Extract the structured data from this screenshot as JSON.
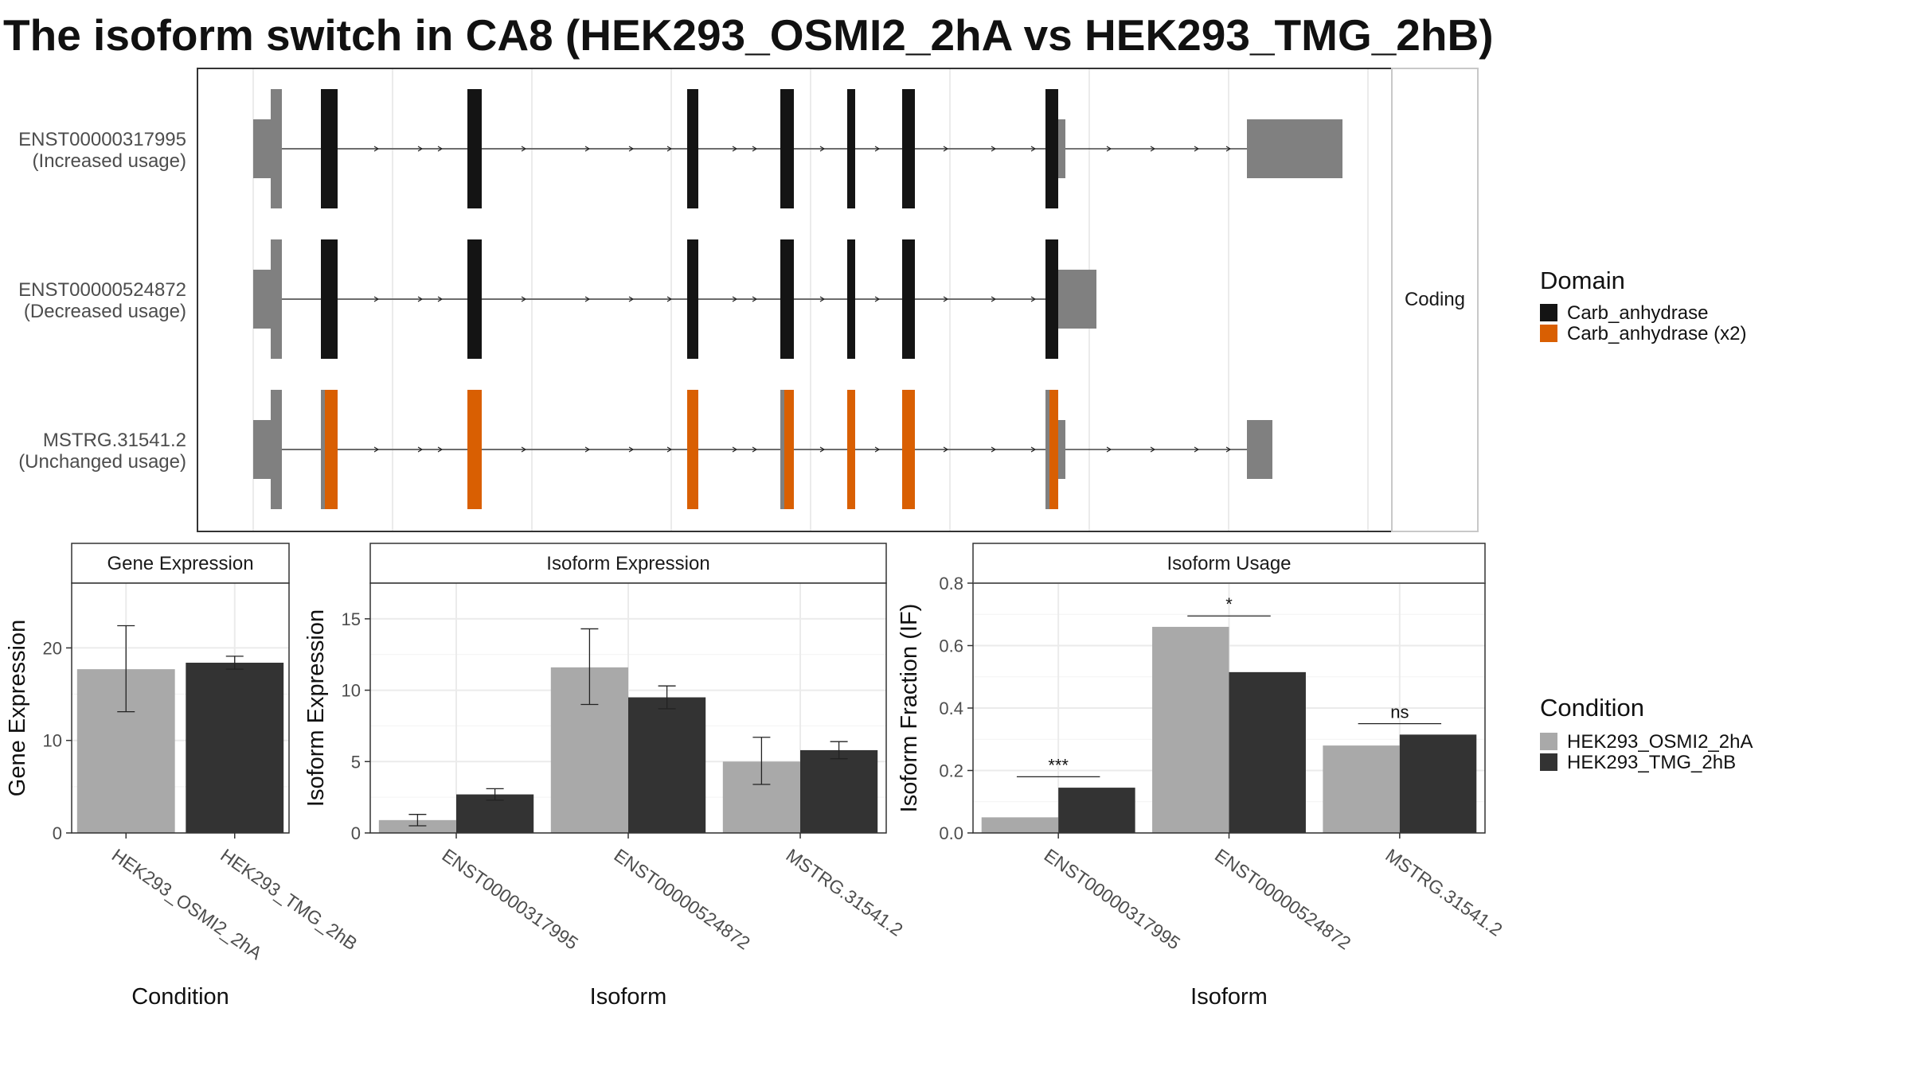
{
  "title": "The isoform switch in CA8 (HEK293_OSMI2_2hA vs HEK293_TMG_2hB)",
  "colors": {
    "carb": "#141414",
    "carb_x2": "#d95f02",
    "utr": "#808080",
    "cond_a": "#a9a9a9",
    "cond_b": "#333333",
    "grid": "#ebebeb",
    "panel_border": "#333333"
  },
  "structure": {
    "facet_label": "Coding",
    "transcripts": [
      {
        "id": "ENST00000317995",
        "usage": "(Increased usage)",
        "utr_end": 1,
        "dom": "carb"
      },
      {
        "id": "ENST00000524872",
        "usage": "(Decreased usage)",
        "utr_end": 2,
        "dom": "carb"
      },
      {
        "id": "MSTRG.31541.2",
        "usage": "(Unchanged usage)",
        "utr_end": 3,
        "dom": "carb_x2"
      }
    ],
    "legend": {
      "title": "Domain",
      "items": [
        {
          "label": "Carb_anhydrase",
          "color_key": "carb"
        },
        {
          "label": "Carb_anhydrase (x2)",
          "color_key": "carb_x2"
        }
      ]
    }
  },
  "condition_legend": {
    "title": "Condition",
    "items": [
      {
        "label": "HEK293_OSMI2_2hA",
        "color_key": "cond_a"
      },
      {
        "label": "HEK293_TMG_2hB",
        "color_key": "cond_b"
      }
    ]
  },
  "chart_data": [
    {
      "type": "bar",
      "title": "Gene Expression",
      "xlabel": "Condition",
      "ylabel": "Gene Expression",
      "ylim": [
        0,
        27
      ],
      "yticks": [
        0,
        10,
        20
      ],
      "categories": [
        "HEK293_OSMI2_2hA",
        "HEK293_TMG_2hB"
      ],
      "values": [
        17.7,
        18.4
      ],
      "err_low": [
        13.1,
        17.7
      ],
      "err_high": [
        22.4,
        19.1
      ]
    },
    {
      "type": "bar",
      "title": "Isoform Expression",
      "xlabel": "Isoform",
      "ylabel": "Isoform Expression",
      "ylim": [
        0,
        17.5
      ],
      "yticks": [
        0,
        5,
        10,
        15
      ],
      "categories": [
        "ENST00000317995",
        "ENST00000524872",
        "MSTRG.31541.2"
      ],
      "series": [
        {
          "name": "HEK293_OSMI2_2hA",
          "values": [
            0.9,
            11.6,
            5.0
          ],
          "err_low": [
            0.5,
            9.0,
            3.4
          ],
          "err_high": [
            1.3,
            14.3,
            6.7
          ]
        },
        {
          "name": "HEK293_TMG_2hB",
          "values": [
            2.7,
            9.5,
            5.8
          ],
          "err_low": [
            2.3,
            8.7,
            5.2
          ],
          "err_high": [
            3.1,
            10.3,
            6.4
          ]
        }
      ]
    },
    {
      "type": "bar",
      "title": "Isoform Usage",
      "xlabel": "Isoform",
      "ylabel": "Isoform Fraction (IF)",
      "ylim": [
        0,
        0.8
      ],
      "yticks": [
        0.0,
        0.2,
        0.4,
        0.6,
        0.8
      ],
      "ytick_labels": [
        "0.0",
        "0.2",
        "0.4",
        "0.6",
        "0.8"
      ],
      "categories": [
        "ENST00000317995",
        "ENST00000524872",
        "MSTRG.31541.2"
      ],
      "series": [
        {
          "name": "HEK293_OSMI2_2hA",
          "values": [
            0.05,
            0.66,
            0.28
          ]
        },
        {
          "name": "HEK293_TMG_2hB",
          "values": [
            0.145,
            0.515,
            0.315
          ]
        }
      ],
      "significance": [
        "***",
        "*",
        "ns"
      ],
      "significance_level": [
        0.18,
        0.695,
        0.35
      ]
    }
  ]
}
